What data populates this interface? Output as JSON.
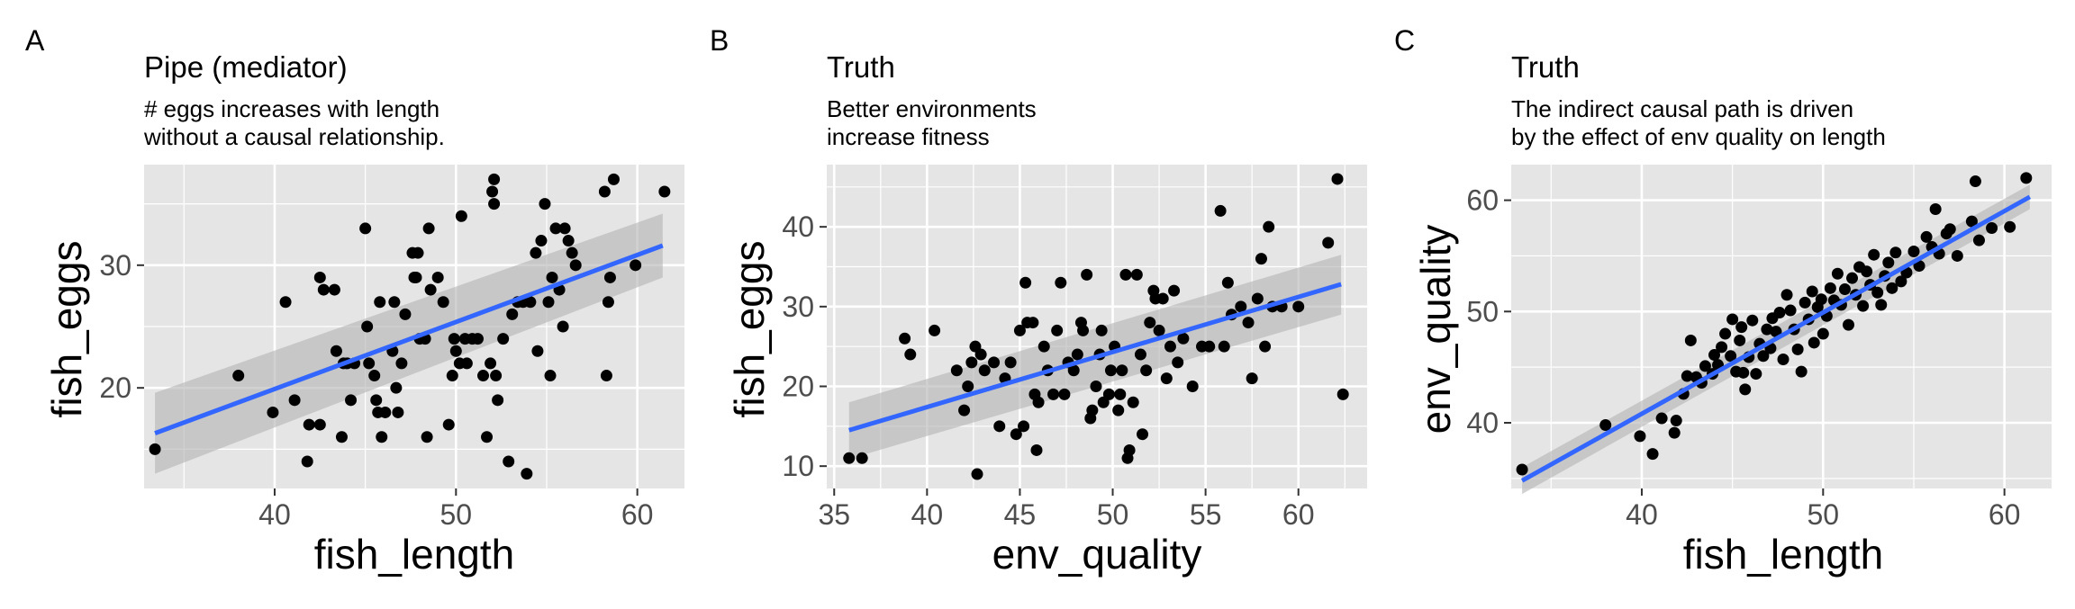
{
  "panels": [
    {
      "tag": "A",
      "title": "Pipe (mediator)",
      "subtitle1": "# eggs increases with length",
      "subtitle2": "without a causal relationship."
    },
    {
      "tag": "B",
      "title": "Truth",
      "subtitle1": "Better environments",
      "subtitle2": "increase fitness"
    },
    {
      "tag": "C",
      "title": "Truth",
      "subtitle1": "The indirect causal path is driven",
      "subtitle2": "by the effect of env quality on length"
    }
  ],
  "colors": {
    "panel_bg": "#e5e5e5",
    "grid": "#ffffff",
    "point": "#000000",
    "fit_line": "#3366ff",
    "ribbon": "#b3b3b3"
  },
  "chart_data": [
    {
      "type": "scatter",
      "title": "Pipe (mediator)",
      "xlabel": "fish_length",
      "ylabel": "fish_eggs",
      "xlim": [
        32.8,
        62.6
      ],
      "ylim": [
        11.8,
        38.2
      ],
      "xticks": [
        40,
        50,
        60
      ],
      "yticks": [
        20,
        30
      ],
      "grid": true,
      "smooth": "lm with 95% confidence band",
      "fit": {
        "x": [
          33.4,
          61.4
        ],
        "y": [
          16.3,
          31.6
        ],
        "se_lo": [
          13.0,
          29.0
        ],
        "se_hi": [
          19.6,
          34.2
        ]
      },
      "points": [
        [
          33.4,
          15
        ],
        [
          38.0,
          21
        ],
        [
          39.9,
          18
        ],
        [
          40.6,
          27
        ],
        [
          41.1,
          19
        ],
        [
          41.8,
          14
        ],
        [
          41.9,
          17
        ],
        [
          42.5,
          17
        ],
        [
          42.5,
          29
        ],
        [
          42.7,
          28
        ],
        [
          43.3,
          28
        ],
        [
          43.4,
          23
        ],
        [
          43.7,
          16
        ],
        [
          43.8,
          22
        ],
        [
          44.0,
          22
        ],
        [
          44.2,
          19
        ],
        [
          44.4,
          22
        ],
        [
          45.0,
          33
        ],
        [
          45.1,
          25
        ],
        [
          45.2,
          22
        ],
        [
          45.5,
          21
        ],
        [
          45.6,
          19
        ],
        [
          45.7,
          18
        ],
        [
          45.8,
          27
        ],
        [
          45.9,
          16
        ],
        [
          46.1,
          18
        ],
        [
          46.5,
          23
        ],
        [
          46.6,
          27
        ],
        [
          46.7,
          20
        ],
        [
          46.8,
          18
        ],
        [
          47.0,
          22
        ],
        [
          47.2,
          26
        ],
        [
          47.6,
          31
        ],
        [
          47.7,
          29
        ],
        [
          47.8,
          29
        ],
        [
          47.9,
          31
        ],
        [
          48.0,
          24
        ],
        [
          48.3,
          24
        ],
        [
          48.4,
          16
        ],
        [
          48.5,
          33
        ],
        [
          48.6,
          28
        ],
        [
          49.0,
          29
        ],
        [
          49.3,
          27
        ],
        [
          49.6,
          17
        ],
        [
          49.8,
          21
        ],
        [
          49.9,
          24
        ],
        [
          50.0,
          23
        ],
        [
          50.2,
          22
        ],
        [
          50.3,
          34
        ],
        [
          50.5,
          24
        ],
        [
          50.6,
          22
        ],
        [
          50.9,
          24
        ],
        [
          51.2,
          24
        ],
        [
          51.5,
          21
        ],
        [
          51.7,
          16
        ],
        [
          51.9,
          22
        ],
        [
          52.0,
          36
        ],
        [
          52.1,
          37
        ],
        [
          52.1,
          35
        ],
        [
          52.2,
          21
        ],
        [
          52.3,
          19
        ],
        [
          52.6,
          24
        ],
        [
          52.9,
          14
        ],
        [
          53.1,
          26
        ],
        [
          53.4,
          27
        ],
        [
          53.7,
          27
        ],
        [
          53.9,
          13
        ],
        [
          54.1,
          27
        ],
        [
          54.4,
          31
        ],
        [
          54.5,
          23
        ],
        [
          54.7,
          32
        ],
        [
          54.9,
          35
        ],
        [
          55.1,
          27
        ],
        [
          55.2,
          21
        ],
        [
          55.3,
          29
        ],
        [
          55.5,
          33
        ],
        [
          55.7,
          28
        ],
        [
          55.9,
          25
        ],
        [
          56.0,
          33
        ],
        [
          56.2,
          32
        ],
        [
          56.4,
          31
        ],
        [
          56.6,
          30
        ],
        [
          58.2,
          36
        ],
        [
          58.4,
          27
        ],
        [
          58.5,
          29
        ],
        [
          58.7,
          37
        ],
        [
          58.3,
          21
        ],
        [
          59.9,
          30
        ],
        [
          61.5,
          36
        ]
      ]
    },
    {
      "type": "scatter",
      "title": "Truth",
      "xlabel": "env_quality",
      "ylabel": "fish_eggs",
      "xlim": [
        34.6,
        63.7
      ],
      "ylim": [
        7.2,
        47.8
      ],
      "xticks": [
        35,
        40,
        45,
        50,
        55,
        60
      ],
      "yticks": [
        10,
        20,
        30,
        40
      ],
      "grid": true,
      "smooth": "lm with 95% confidence band",
      "fit": {
        "x": [
          35.8,
          62.3
        ],
        "y": [
          14.5,
          32.8
        ],
        "se_lo": [
          10.9,
          29.0
        ],
        "se_hi": [
          18.0,
          36.5
        ]
      },
      "points": [
        [
          35.8,
          11
        ],
        [
          36.5,
          11
        ],
        [
          38.8,
          26
        ],
        [
          39.1,
          24
        ],
        [
          40.4,
          27
        ],
        [
          41.6,
          22
        ],
        [
          42.0,
          17
        ],
        [
          42.2,
          20
        ],
        [
          42.4,
          23
        ],
        [
          42.6,
          25
        ],
        [
          42.7,
          9
        ],
        [
          42.9,
          24
        ],
        [
          43.1,
          22
        ],
        [
          43.6,
          23
        ],
        [
          43.9,
          15
        ],
        [
          44.2,
          21
        ],
        [
          44.5,
          23
        ],
        [
          44.8,
          14
        ],
        [
          45.0,
          27
        ],
        [
          45.2,
          15
        ],
        [
          45.3,
          33
        ],
        [
          45.4,
          28
        ],
        [
          45.7,
          28
        ],
        [
          45.8,
          19
        ],
        [
          45.9,
          12
        ],
        [
          46.0,
          18
        ],
        [
          46.3,
          25
        ],
        [
          46.5,
          22
        ],
        [
          46.8,
          19
        ],
        [
          47.0,
          27
        ],
        [
          47.2,
          33
        ],
        [
          47.4,
          19
        ],
        [
          47.6,
          23
        ],
        [
          47.9,
          22
        ],
        [
          48.1,
          24
        ],
        [
          48.3,
          28
        ],
        [
          48.4,
          27
        ],
        [
          48.6,
          34
        ],
        [
          48.8,
          16
        ],
        [
          48.9,
          17
        ],
        [
          49.1,
          20
        ],
        [
          49.3,
          24
        ],
        [
          49.4,
          27
        ],
        [
          49.5,
          18
        ],
        [
          49.8,
          19
        ],
        [
          49.9,
          22
        ],
        [
          50.1,
          25
        ],
        [
          50.3,
          17
        ],
        [
          50.4,
          19
        ],
        [
          50.5,
          22
        ],
        [
          50.7,
          34
        ],
        [
          50.8,
          11
        ],
        [
          50.9,
          12
        ],
        [
          51.1,
          18
        ],
        [
          51.3,
          34
        ],
        [
          51.5,
          24
        ],
        [
          51.6,
          14
        ],
        [
          51.8,
          22
        ],
        [
          52.0,
          28
        ],
        [
          52.2,
          32
        ],
        [
          52.3,
          31
        ],
        [
          52.5,
          27
        ],
        [
          52.7,
          31
        ],
        [
          52.9,
          21
        ],
        [
          53.1,
          25
        ],
        [
          53.3,
          32
        ],
        [
          53.5,
          23
        ],
        [
          53.8,
          26
        ],
        [
          54.3,
          20
        ],
        [
          54.8,
          25
        ],
        [
          55.2,
          25
        ],
        [
          55.8,
          42
        ],
        [
          56.0,
          25
        ],
        [
          56.2,
          33
        ],
        [
          56.4,
          29
        ],
        [
          56.9,
          30
        ],
        [
          57.3,
          28
        ],
        [
          57.5,
          21
        ],
        [
          57.8,
          31
        ],
        [
          58.0,
          36
        ],
        [
          58.2,
          25
        ],
        [
          58.4,
          40
        ],
        [
          58.6,
          30
        ],
        [
          59.1,
          30
        ],
        [
          60.0,
          30
        ],
        [
          61.6,
          38
        ],
        [
          62.1,
          46
        ],
        [
          62.4,
          19
        ]
      ]
    },
    {
      "type": "scatter",
      "title": "Truth",
      "xlabel": "fish_length",
      "ylabel": "env_quality",
      "xlim": [
        32.8,
        62.6
      ],
      "ylim": [
        34.1,
        63.2
      ],
      "xticks": [
        40,
        50,
        60
      ],
      "yticks": [
        40,
        50,
        60
      ],
      "grid": true,
      "smooth": "lm with 95% confidence band",
      "fit": {
        "x": [
          33.4,
          61.4
        ],
        "y": [
          34.8,
          60.3
        ],
        "se_lo": [
          33.6,
          59.2
        ],
        "se_hi": [
          36.0,
          61.4
        ]
      },
      "points": [
        [
          33.4,
          35.8
        ],
        [
          38.0,
          39.8
        ],
        [
          39.9,
          38.8
        ],
        [
          40.6,
          37.2
        ],
        [
          41.1,
          40.4
        ],
        [
          41.8,
          39.1
        ],
        [
          41.9,
          40.2
        ],
        [
          42.3,
          42.6
        ],
        [
          42.5,
          44.2
        ],
        [
          42.7,
          47.4
        ],
        [
          43.0,
          44.1
        ],
        [
          43.3,
          43.6
        ],
        [
          43.5,
          45.1
        ],
        [
          43.9,
          44.4
        ],
        [
          44.0,
          46.1
        ],
        [
          44.2,
          45.2
        ],
        [
          44.4,
          46.8
        ],
        [
          44.6,
          48.0
        ],
        [
          44.9,
          46.0
        ],
        [
          45.0,
          49.3
        ],
        [
          45.2,
          44.6
        ],
        [
          45.4,
          47.4
        ],
        [
          45.5,
          48.6
        ],
        [
          45.6,
          44.5
        ],
        [
          45.7,
          43.0
        ],
        [
          45.9,
          45.9
        ],
        [
          46.1,
          49.2
        ],
        [
          46.3,
          44.4
        ],
        [
          46.5,
          47.1
        ],
        [
          46.7,
          46.0
        ],
        [
          46.9,
          48.4
        ],
        [
          47.1,
          46.7
        ],
        [
          47.2,
          49.4
        ],
        [
          47.4,
          48.2
        ],
        [
          47.6,
          49.9
        ],
        [
          47.8,
          45.7
        ],
        [
          48.0,
          51.5
        ],
        [
          48.2,
          50.1
        ],
        [
          48.4,
          48.4
        ],
        [
          48.6,
          46.6
        ],
        [
          48.8,
          44.6
        ],
        [
          49.0,
          50.8
        ],
        [
          49.2,
          49.3
        ],
        [
          49.4,
          51.8
        ],
        [
          49.5,
          47.2
        ],
        [
          49.7,
          50.4
        ],
        [
          49.9,
          51.1
        ],
        [
          50.0,
          48.0
        ],
        [
          50.2,
          49.6
        ],
        [
          50.4,
          52.1
        ],
        [
          50.6,
          51.0
        ],
        [
          50.8,
          53.4
        ],
        [
          51.0,
          50.6
        ],
        [
          51.2,
          52.0
        ],
        [
          51.4,
          48.8
        ],
        [
          51.6,
          53.0
        ],
        [
          51.8,
          51.5
        ],
        [
          52.0,
          54.0
        ],
        [
          52.2,
          50.5
        ],
        [
          52.4,
          53.6
        ],
        [
          52.6,
          52.4
        ],
        [
          52.8,
          55.1
        ],
        [
          53.0,
          51.7
        ],
        [
          53.2,
          50.6
        ],
        [
          53.4,
          53.2
        ],
        [
          53.6,
          54.4
        ],
        [
          53.8,
          52.1
        ],
        [
          54.0,
          55.3
        ],
        [
          54.3,
          52.7
        ],
        [
          54.6,
          53.5
        ],
        [
          55.0,
          55.4
        ],
        [
          55.3,
          54.1
        ],
        [
          55.7,
          56.7
        ],
        [
          56.0,
          55.8
        ],
        [
          56.2,
          59.2
        ],
        [
          56.4,
          55.2
        ],
        [
          56.8,
          57.0
        ],
        [
          57.0,
          57.4
        ],
        [
          57.4,
          55.0
        ],
        [
          58.2,
          58.1
        ],
        [
          58.4,
          61.7
        ],
        [
          58.6,
          56.4
        ],
        [
          59.3,
          57.5
        ],
        [
          60.3,
          57.6
        ],
        [
          61.2,
          62.0
        ]
      ]
    }
  ]
}
